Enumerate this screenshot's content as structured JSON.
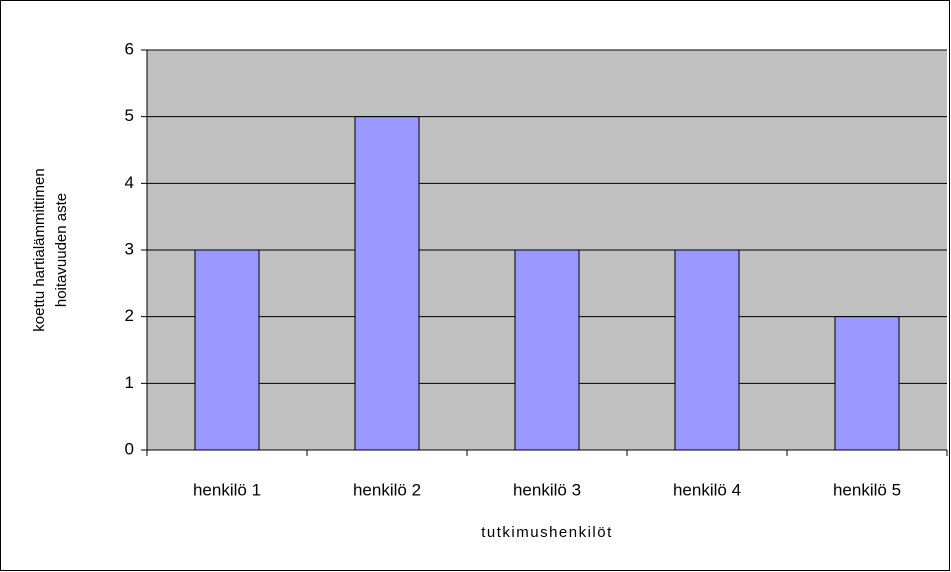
{
  "chart_data": {
    "type": "bar",
    "categories": [
      "henkilö 1",
      "henkilö 2",
      "henkilö 3",
      "henkilö 4",
      "henkilö 5"
    ],
    "values": [
      3,
      5,
      3,
      3,
      2
    ],
    "color": "#9999ff",
    "xlabel": "tutkimushenkilöt",
    "ylabel": [
      "koettu hartialämmittimen",
      "hoitavuuden aste"
    ],
    "ylim": [
      0,
      6
    ],
    "yticks": [
      0,
      1,
      2,
      3,
      4,
      5,
      6
    ],
    "grid": true
  }
}
